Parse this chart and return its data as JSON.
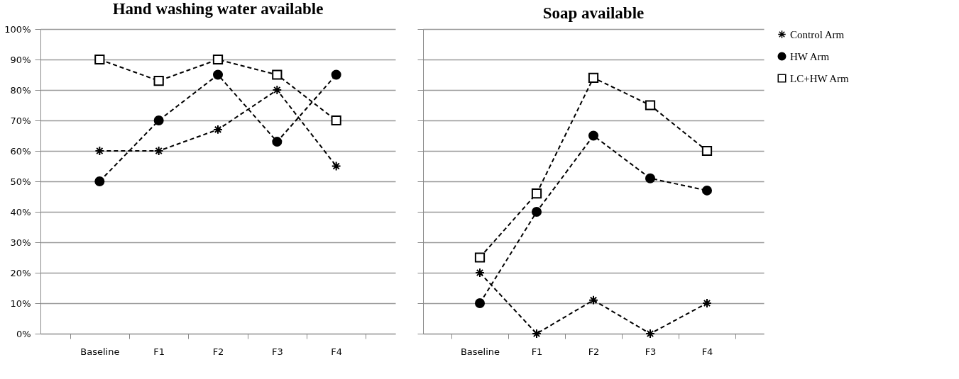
{
  "chart_data": [
    {
      "type": "line",
      "title": "Hand washing water available",
      "categories": [
        "Baseline",
        "F1",
        "F2",
        "F3",
        "F4"
      ],
      "ylim": [
        0,
        100
      ],
      "yticks": [
        {
          "value": 0,
          "label": "0%"
        },
        {
          "value": 10,
          "label": "10%"
        },
        {
          "value": 20,
          "label": "20%"
        },
        {
          "value": 30,
          "label": "30%"
        },
        {
          "value": 40,
          "label": "40%"
        },
        {
          "value": 50,
          "label": "50%"
        },
        {
          "value": 60,
          "label": "60%"
        },
        {
          "value": 70,
          "label": "70%"
        },
        {
          "value": 80,
          "label": "80%"
        },
        {
          "value": 90,
          "label": "90%"
        },
        {
          "value": 100,
          "label": "100%"
        }
      ],
      "grid": "y",
      "legend": false,
      "line_style": "dashed",
      "series": [
        {
          "color": "#000000",
          "marker": "cross",
          "values": [
            60,
            60,
            67,
            80,
            55
          ]
        },
        {
          "color": "#000000",
          "marker": "circle",
          "values": [
            50,
            70,
            85,
            63,
            85
          ]
        },
        {
          "color": "#000000",
          "marker": "square",
          "values": [
            90,
            83,
            90,
            85,
            70
          ]
        }
      ]
    },
    {
      "type": "line",
      "title": "Soap available",
      "categories": [
        "Baseline",
        "F1",
        "F2",
        "F3",
        "F4"
      ],
      "ylim": [
        0,
        100
      ],
      "yticks": [
        0,
        10,
        20,
        30,
        40,
        50,
        60,
        70,
        80,
        90,
        100
      ],
      "tick_labels": "x",
      "grid": "y",
      "legend": "right",
      "line_style": "dashed",
      "series": [
        {
          "name": "Control Arm",
          "color": "#000000",
          "marker": "cross",
          "values": [
            20,
            0,
            11,
            0,
            10
          ]
        },
        {
          "name": "HW Arm",
          "color": "#000000",
          "marker": "circle",
          "values": [
            10,
            40,
            65,
            51,
            47
          ]
        },
        {
          "name": "LC+HW Arm",
          "color": "#000000",
          "marker": "square",
          "values": [
            25,
            46,
            84,
            75,
            60
          ]
        }
      ]
    }
  ]
}
